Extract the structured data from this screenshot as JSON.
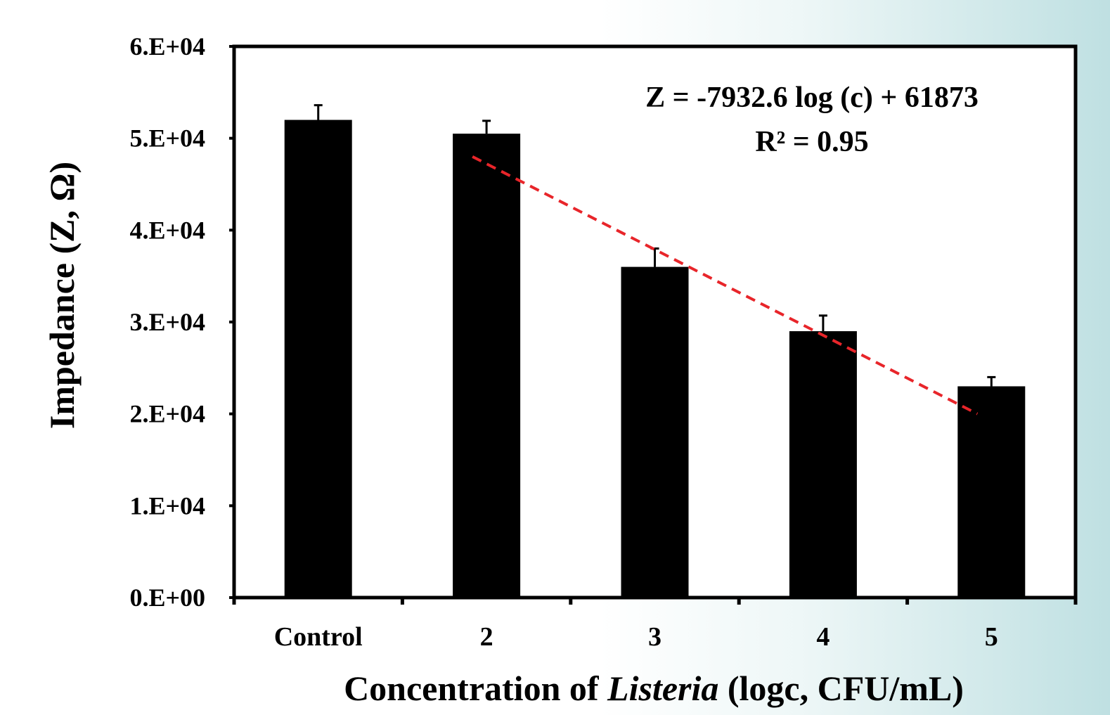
{
  "chart_data": {
    "type": "bar",
    "categories": [
      "Control",
      "2",
      "3",
      "4",
      "5"
    ],
    "series": [
      {
        "values": [
          52000,
          50500,
          36000,
          29000,
          23000
        ],
        "error": [
          1600,
          1400,
          2000,
          1700,
          1000
        ],
        "color": "#000000"
      }
    ],
    "trendline": {
      "x": [
        2,
        5
      ],
      "y": [
        48000,
        20000
      ],
      "color": "#e8252a",
      "style": "dashed",
      "equation": "Z = -7932.6 log (c) + 61873",
      "r2": "R² = 0.95"
    },
    "ylim": [
      0,
      60000
    ],
    "yticks": [
      "0.E+00",
      "1.E+04",
      "2.E+04",
      "3.E+04",
      "4.E+04",
      "5.E+04",
      "6.E+04"
    ],
    "ylabel": "Impedance (Z, Ω)",
    "xlabel_prefix": "Concentration of ",
    "xlabel_italic": "Listeria",
    "xlabel_suffix": " (logc, CFU/mL)",
    "grid": false
  }
}
